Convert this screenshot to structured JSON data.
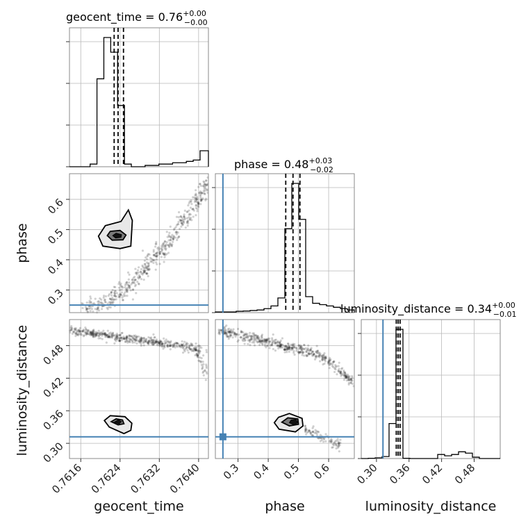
{
  "chart_data": {
    "type": "corner",
    "parameters": [
      "geocent_time",
      "phase",
      "luminosity_distance"
    ],
    "titles": [
      {
        "param": "geocent_time",
        "median": "0.76",
        "plus": "+0.00",
        "minus": "−0.00"
      },
      {
        "param": "phase",
        "median": "0.48",
        "plus": "+0.03",
        "minus": "−0.02"
      },
      {
        "param": "luminosity_distance",
        "median": "0.34",
        "plus": "+0.00",
        "minus": "−0.01"
      }
    ],
    "ranges": {
      "geocent_time": [
        0.76137,
        0.7642
      ],
      "phase": [
        0.225,
        0.685
      ],
      "luminosity_distance": [
        0.272,
        0.528
      ]
    },
    "ticks": {
      "geocent_time": [
        "0.7616",
        "0.7624",
        "0.7632",
        "0.7640"
      ],
      "phase": [
        "0.3",
        "0.4",
        "0.5",
        "0.6"
      ],
      "luminosity_distance_y": [
        "0.30",
        "0.36",
        "0.42",
        "0.48"
      ],
      "luminosity_distance_x": [
        "0.30",
        "0.36",
        "0.42",
        "0.48"
      ]
    },
    "truth": {
      "phase": 0.25,
      "luminosity_distance": 0.312
    },
    "quantiles": {
      "geocent_time": [
        0.76228,
        0.76236,
        0.76247
      ],
      "phase": [
        0.458,
        0.482,
        0.505
      ],
      "luminosity_distance": [
        0.3365,
        0.34,
        0.3435
      ]
    },
    "histograms": {
      "geocent_time": {
        "edges": [
          0.76137,
          0.76151,
          0.76165,
          0.76179,
          0.76193,
          0.76207,
          0.76221,
          0.76235,
          0.76249,
          0.76263,
          0.76277,
          0.76291,
          0.76305,
          0.76319,
          0.76333,
          0.76347,
          0.76361,
          0.76375,
          0.76389,
          0.76403,
          0.7642
        ],
        "counts": [
          0,
          0,
          0,
          0.02,
          0.66,
          0.97,
          0.86,
          0.46,
          0.02,
          0,
          0,
          0.01,
          0.01,
          0.02,
          0.02,
          0.03,
          0.03,
          0.04,
          0.05,
          0.12
        ]
      },
      "phase": {
        "edges": [
          0.225,
          0.248,
          0.271,
          0.294,
          0.317,
          0.34,
          0.363,
          0.386,
          0.409,
          0.432,
          0.455,
          0.478,
          0.501,
          0.524,
          0.547,
          0.57,
          0.593,
          0.616,
          0.639,
          0.662,
          0.685
        ],
        "counts": [
          0.005,
          0.005,
          0.005,
          0.01,
          0.012,
          0.016,
          0.02,
          0.03,
          0.05,
          0.11,
          0.63,
          0.97,
          0.7,
          0.12,
          0.07,
          0.06,
          0.05,
          0.04,
          0.03,
          0.02
        ]
      },
      "luminosity_distance": {
        "edges": [
          0.272,
          0.2848,
          0.2976,
          0.3104,
          0.3232,
          0.336,
          0.3488,
          0.3616,
          0.3744,
          0.3872,
          0.4,
          0.4128,
          0.4256,
          0.4384,
          0.4512,
          0.464,
          0.4768,
          0.4896,
          0.5024,
          0.5152,
          0.528
        ],
        "counts": [
          0,
          0.002,
          0.005,
          0.015,
          0.26,
          0.96,
          0.002,
          0,
          0,
          0,
          0,
          0.03,
          0.02,
          0.03,
          0.05,
          0.04,
          0.01,
          0,
          0,
          0
        ]
      }
    },
    "contours": {
      "phase_vs_geocent_time": {
        "outer": [
          [
            0.76196,
            0.478
          ],
          [
            0.76205,
            0.445
          ],
          [
            0.7624,
            0.437
          ],
          [
            0.76262,
            0.445
          ],
          [
            0.76265,
            0.53
          ],
          [
            0.76257,
            0.565
          ],
          [
            0.76242,
            0.527
          ],
          [
            0.7621,
            0.513
          ]
        ],
        "inner": [
          [
            0.76214,
            0.48
          ],
          [
            0.76224,
            0.465
          ],
          [
            0.76246,
            0.466
          ],
          [
            0.76252,
            0.482
          ],
          [
            0.7624,
            0.497
          ],
          [
            0.7622,
            0.494
          ]
        ],
        "core": [
          [
            0.76225,
            0.48
          ],
          [
            0.76231,
            0.472
          ],
          [
            0.76242,
            0.474
          ],
          [
            0.76243,
            0.483
          ],
          [
            0.76232,
            0.488
          ]
        ]
      },
      "luminosity_distance_vs_geocent_time": {
        "outer": [
          [
            0.76208,
            0.342
          ],
          [
            0.76218,
            0.33
          ],
          [
            0.76248,
            0.318
          ],
          [
            0.76262,
            0.324
          ],
          [
            0.76264,
            0.337
          ],
          [
            0.7625,
            0.349
          ],
          [
            0.7622,
            0.351
          ]
        ],
        "inner": [
          [
            0.76222,
            0.34
          ],
          [
            0.76236,
            0.334
          ],
          [
            0.76248,
            0.336
          ],
          [
            0.76245,
            0.343
          ],
          [
            0.76232,
            0.345
          ]
        ],
        "core": [
          [
            0.76228,
            0.339
          ],
          [
            0.76238,
            0.336
          ],
          [
            0.76243,
            0.34
          ],
          [
            0.76236,
            0.343
          ]
        ]
      },
      "luminosity_distance_vs_phase": {
        "outer": [
          [
            0.42,
            0.338
          ],
          [
            0.436,
            0.326
          ],
          [
            0.49,
            0.321
          ],
          [
            0.515,
            0.332
          ],
          [
            0.512,
            0.346
          ],
          [
            0.47,
            0.355
          ],
          [
            0.434,
            0.348
          ]
        ],
        "inner": [
          [
            0.445,
            0.339
          ],
          [
            0.47,
            0.332
          ],
          [
            0.5,
            0.335
          ],
          [
            0.498,
            0.345
          ],
          [
            0.465,
            0.347
          ]
        ],
        "core": [
          [
            0.47,
            0.338
          ],
          [
            0.485,
            0.334
          ],
          [
            0.498,
            0.338
          ],
          [
            0.492,
            0.344
          ],
          [
            0.476,
            0.343
          ]
        ]
      }
    },
    "grid": true
  }
}
